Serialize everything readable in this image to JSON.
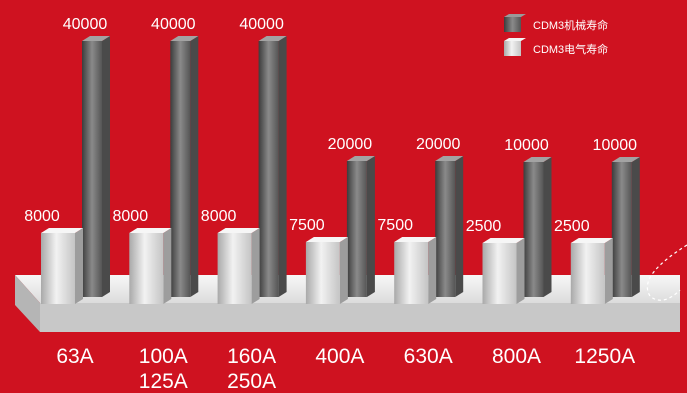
{
  "chart_data": {
    "type": "bar",
    "categories": [
      "63A",
      "100A\n125A",
      "160A\n250A",
      "400A",
      "630A",
      "800A",
      "1250A"
    ],
    "category_lines": [
      [
        "63A"
      ],
      [
        "100A",
        "125A"
      ],
      [
        "160A",
        "250A"
      ],
      [
        "400A"
      ],
      [
        "630A"
      ],
      [
        "800A"
      ],
      [
        "1250A"
      ]
    ],
    "series": [
      {
        "name": "CDM3电气寿命",
        "values": [
          8000,
          8000,
          8000,
          7500,
          7500,
          2500,
          2500
        ],
        "color": "#d4d4d4"
      },
      {
        "name": "CDM3机械寿命",
        "values": [
          40000,
          40000,
          40000,
          20000,
          20000,
          10000,
          10000
        ],
        "color": "#6b6b6b"
      }
    ],
    "value_labels": {
      "electrical": [
        "8000",
        "8000",
        "8000",
        "7500",
        "7500",
        "2500",
        "2500"
      ],
      "mechanical": [
        "40000",
        "40000",
        "40000",
        "20000",
        "20000",
        "10000",
        "10000"
      ]
    },
    "legend": {
      "position": "top-right",
      "order": [
        "CDM3机械寿命",
        "CDM3电气寿命"
      ]
    },
    "scale_note": "bar heights are illustrative, not proportional",
    "grid": false,
    "background_color": "#cf1220",
    "platform_color": "#e6e6e6"
  }
}
